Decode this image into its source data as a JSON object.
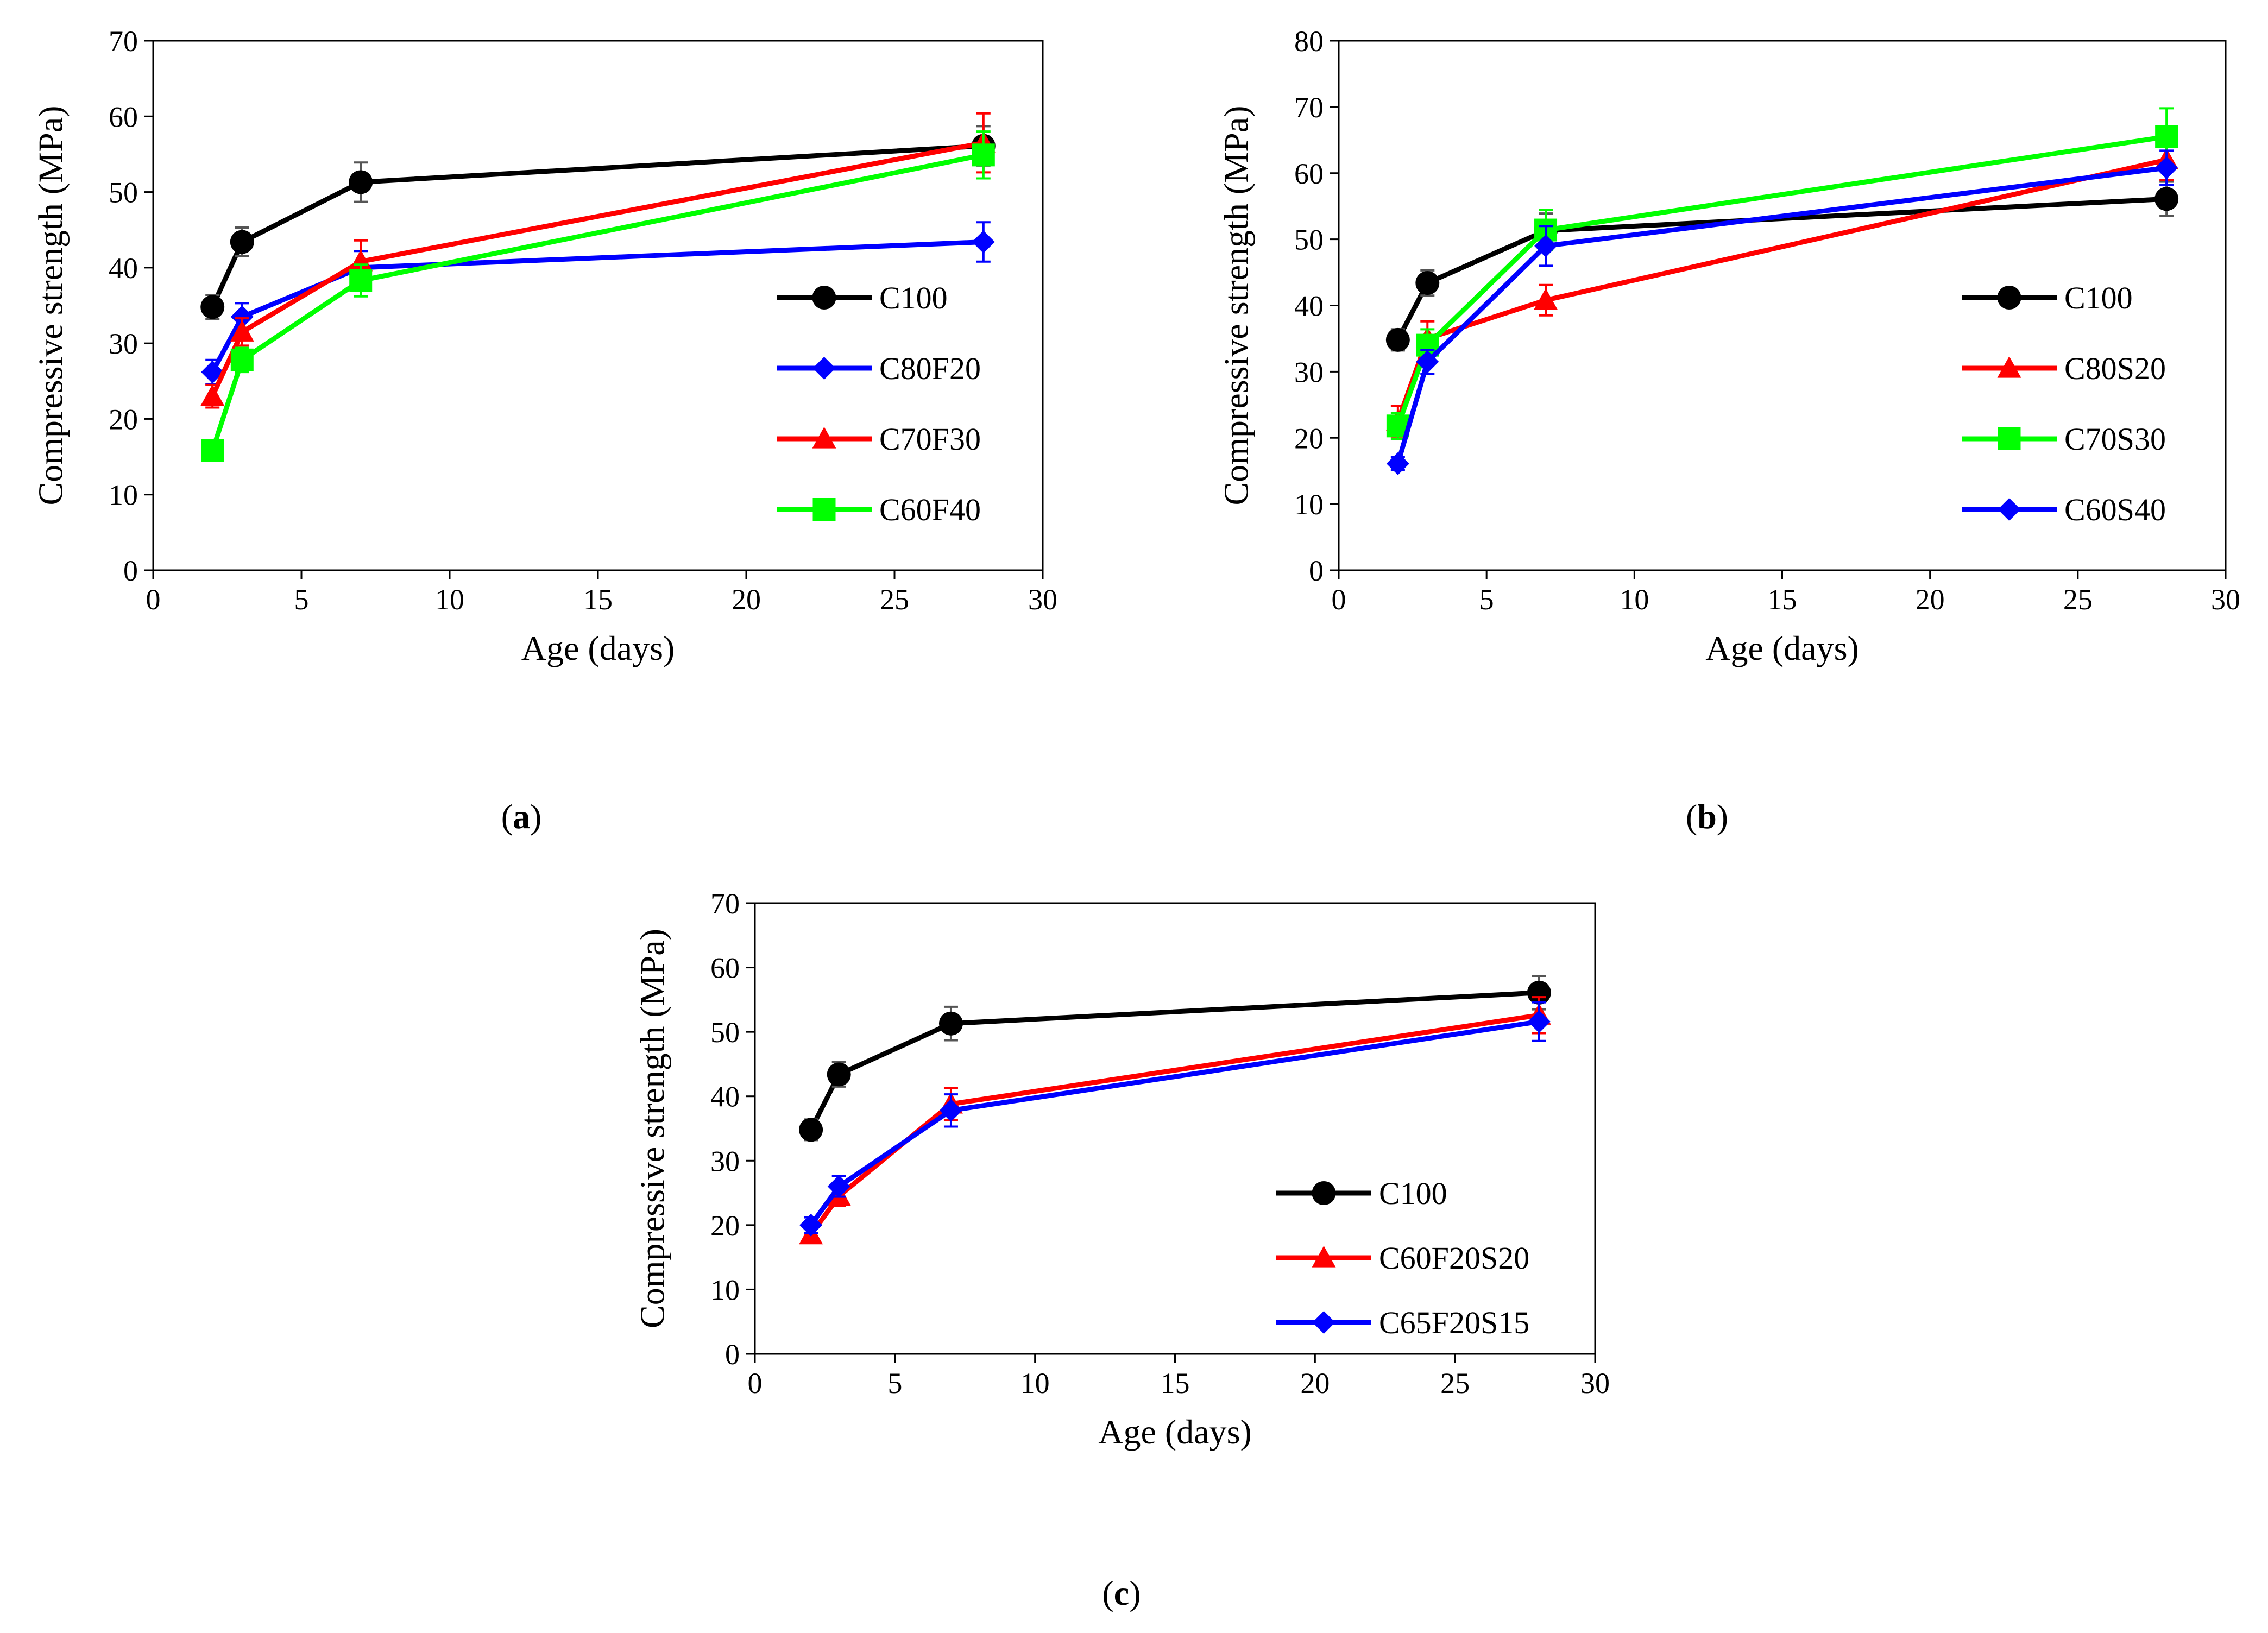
{
  "chart_data": [
    {
      "id": "a",
      "type": "line",
      "caption": "(a)",
      "caption_parts": [
        "(",
        "a",
        ")"
      ],
      "xlabel": "Age (days)",
      "ylabel": "Compressive strength (MPa)",
      "xlim": [
        0,
        30
      ],
      "ylim": [
        0,
        70
      ],
      "xticks": [
        0,
        5,
        10,
        15,
        20,
        25,
        30
      ],
      "yticks": [
        0,
        10,
        20,
        30,
        40,
        50,
        60,
        70
      ],
      "x": [
        2,
        3,
        7,
        28
      ],
      "legend_position": "right",
      "series": [
        {
          "name": "C100",
          "marker": "circle",
          "color": "#000000",
          "errcolor": "#555555",
          "values": [
            34.8,
            43.4,
            51.3,
            56.1
          ],
          "errors": [
            1.6,
            1.9,
            2.6,
            2.6
          ]
        },
        {
          "name": "C80F20",
          "marker": "diamond",
          "color": "#0000ff",
          "errcolor": "#0000ff",
          "values": [
            26.2,
            33.5,
            40.0,
            43.4
          ],
          "errors": [
            1.6,
            1.8,
            2.2,
            2.6
          ]
        },
        {
          "name": "C70F30",
          "marker": "triangle",
          "color": "#ff0000",
          "errcolor": "#ff0000",
          "values": [
            23.0,
            31.5,
            40.8,
            56.5
          ],
          "errors": [
            1.5,
            1.8,
            2.8,
            3.9
          ]
        },
        {
          "name": "C60F40",
          "marker": "square",
          "color": "#00ff00",
          "errcolor": "#00ff00",
          "values": [
            15.8,
            27.8,
            38.3,
            54.9
          ],
          "errors": [
            1.0,
            1.6,
            2.1,
            3.1
          ]
        }
      ]
    },
    {
      "id": "b",
      "type": "line",
      "caption": "(b)",
      "caption_parts": [
        "(",
        "b",
        ")"
      ],
      "xlabel": "Age (days)",
      "ylabel": "Compressive strength (MPa)",
      "xlim": [
        0,
        30
      ],
      "ylim": [
        0,
        80
      ],
      "xticks": [
        0,
        5,
        10,
        15,
        20,
        25,
        30
      ],
      "yticks": [
        0,
        10,
        20,
        30,
        40,
        50,
        60,
        70,
        80
      ],
      "x": [
        2,
        3,
        7,
        28
      ],
      "legend_position": "right",
      "series": [
        {
          "name": "C100",
          "marker": "circle",
          "color": "#000000",
          "errcolor": "#555555",
          "values": [
            34.8,
            43.4,
            51.3,
            56.1
          ],
          "errors": [
            1.6,
            1.9,
            2.6,
            2.6
          ]
        },
        {
          "name": "C80S20",
          "marker": "triangle",
          "color": "#ff0000",
          "errcolor": "#ff0000",
          "values": [
            22.5,
            35.0,
            40.8,
            62.0
          ],
          "errors": [
            2.3,
            2.6,
            2.3,
            3.0
          ]
        },
        {
          "name": "C70S30",
          "marker": "square",
          "color": "#00ff00",
          "errcolor": "#00ff00",
          "values": [
            21.8,
            34.0,
            51.4,
            65.5
          ],
          "errors": [
            2.0,
            2.4,
            3.0,
            4.3
          ]
        },
        {
          "name": "C60S40",
          "marker": "diamond",
          "color": "#0000ff",
          "errcolor": "#0000ff",
          "values": [
            16.1,
            31.5,
            49.0,
            60.8
          ],
          "errors": [
            1.0,
            1.8,
            3.0,
            2.6
          ]
        }
      ]
    },
    {
      "id": "c",
      "type": "line",
      "caption": "(c)",
      "caption_parts": [
        "(",
        "c",
        ")"
      ],
      "xlabel": "Age (days)",
      "ylabel": "Compressive strength (MPa)",
      "xlim": [
        0,
        30
      ],
      "ylim": [
        0,
        70
      ],
      "xticks": [
        0,
        5,
        10,
        15,
        20,
        25,
        30
      ],
      "yticks": [
        0,
        10,
        20,
        30,
        40,
        50,
        60,
        70
      ],
      "x": [
        2,
        3,
        7,
        28
      ],
      "legend_position": "bottom-right",
      "series": [
        {
          "name": "C100",
          "marker": "circle",
          "color": "#000000",
          "errcolor": "#555555",
          "values": [
            34.8,
            43.4,
            51.3,
            56.1
          ],
          "errors": [
            1.6,
            1.9,
            2.6,
            2.6
          ]
        },
        {
          "name": "C60F20S20",
          "marker": "triangle",
          "color": "#ff0000",
          "errcolor": "#ff0000",
          "values": [
            18.5,
            24.5,
            38.8,
            52.6
          ],
          "errors": [
            1.0,
            1.5,
            2.5,
            2.8
          ]
        },
        {
          "name": "C65F20S15",
          "marker": "diamond",
          "color": "#0000ff",
          "errcolor": "#0000ff",
          "values": [
            20.0,
            26.0,
            37.8,
            51.6
          ],
          "errors": [
            1.2,
            1.6,
            2.5,
            3.0
          ]
        }
      ]
    }
  ]
}
